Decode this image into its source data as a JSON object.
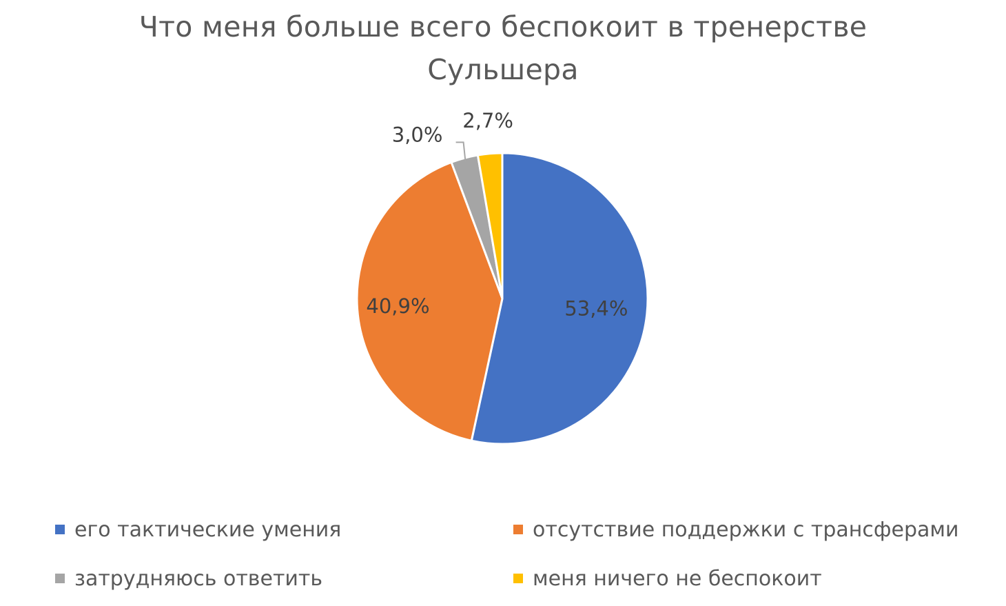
{
  "chart_data": {
    "type": "pie",
    "title_line1": "Что меня больше всего беспокоит в тренерстве",
    "title_line2": "Сульшера",
    "slices": [
      {
        "name": "его тактические умения",
        "value": 53.4,
        "label": "53,4%",
        "color": "#4472C4"
      },
      {
        "name": "отсутствие поддержки с трансферами",
        "value": 40.9,
        "label": "40,9%",
        "color": "#ED7D31"
      },
      {
        "name": "затрудняюсь ответить",
        "value": 3.0,
        "label": "3,0%",
        "color": "#A5A5A5"
      },
      {
        "name": "меня ничего не беспокоит",
        "value": 2.7,
        "label": "2,7%",
        "color": "#FFC000"
      }
    ],
    "legend_position": "bottom"
  }
}
